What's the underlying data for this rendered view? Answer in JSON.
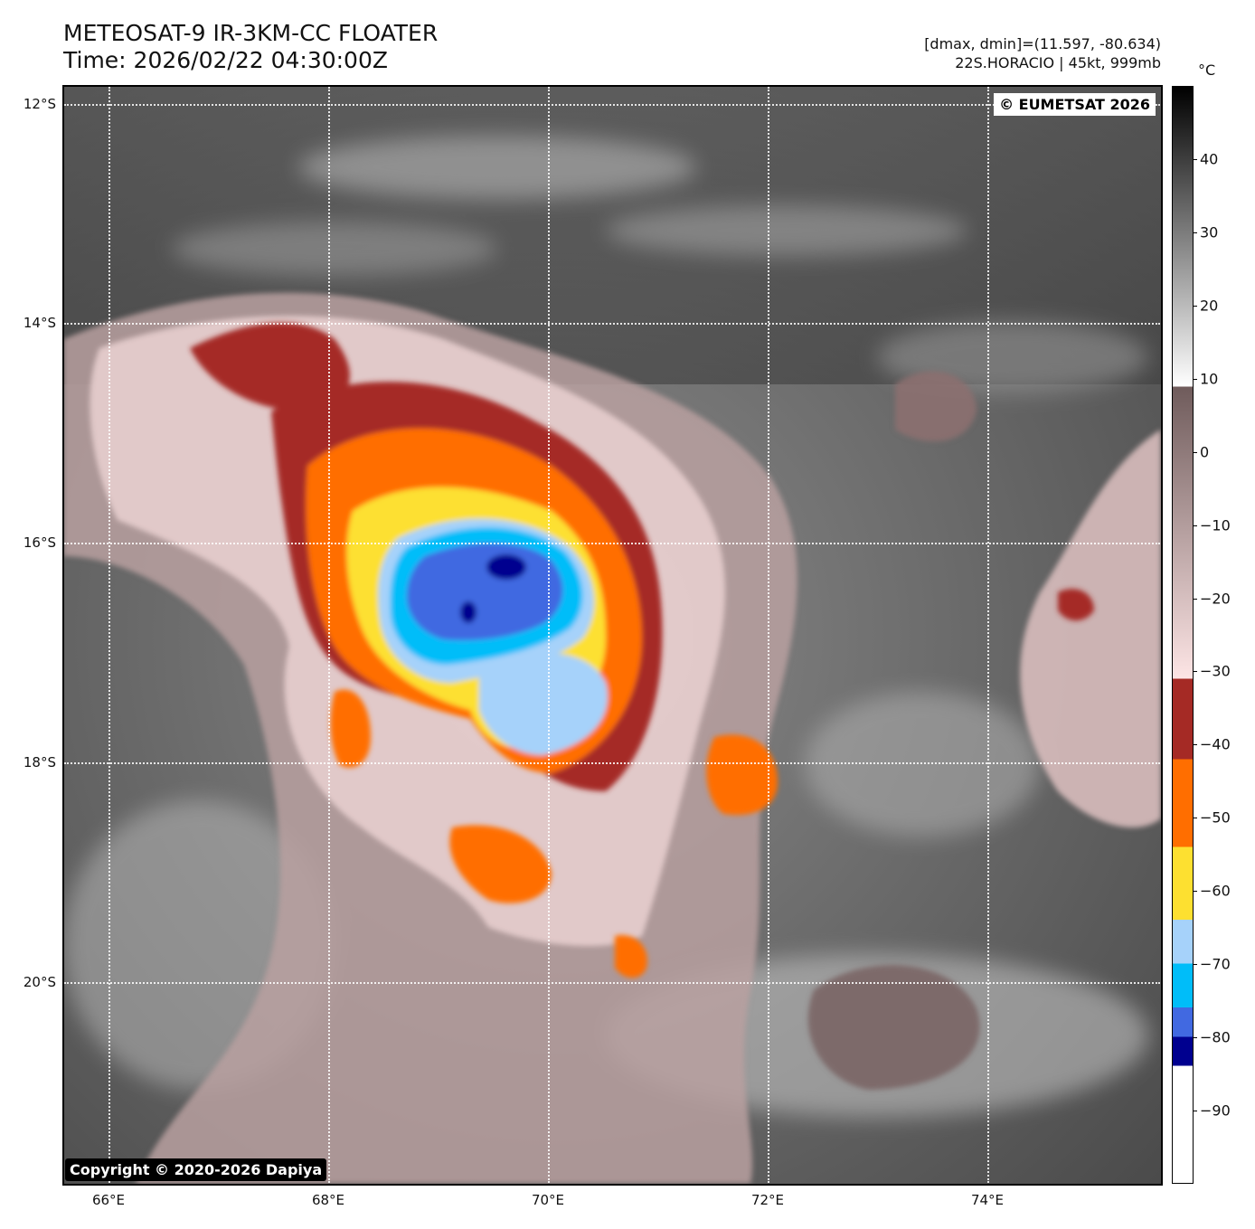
{
  "header": {
    "title_line1": "METEOSAT-9 IR-3KM-CC FLOATER",
    "title_line2": "Time: 2026/02/22 04:30:00Z",
    "info_line1": "[dmax, dmin]=(11.597, -80.634)",
    "info_line2": "22S.HORACIO | 45kt, 999mb"
  },
  "map": {
    "credit_top": "© EUMETSAT 2026",
    "credit_bottom": "Copyright © 2020-2026 Dapiya",
    "lat_labels": [
      "12°S",
      "14°S",
      "16°S",
      "18°S",
      "20°S"
    ],
    "lon_labels": [
      "66°E",
      "68°E",
      "70°E",
      "72°E",
      "74°E"
    ],
    "storm": {
      "name": "22S.HORACIO",
      "intensity_kt": 45,
      "pressure_mb": 999,
      "coldest_top_c": -80.634,
      "warmest_c": 11.597
    }
  },
  "colorbar": {
    "unit": "°C",
    "ticks": [
      "40",
      "30",
      "20",
      "10",
      "0",
      "−10",
      "−20",
      "−30",
      "−40",
      "−50",
      "−60",
      "−70",
      "−80",
      "−90"
    ],
    "tick_values": [
      40,
      30,
      20,
      10,
      0,
      -10,
      -20,
      -30,
      -40,
      -50,
      -60,
      -70,
      -80,
      -90
    ],
    "range": [
      50,
      -100
    ],
    "bands": [
      {
        "from": 50,
        "to": 9,
        "type": "gradient",
        "colors": [
          "#000000",
          "#ffffff"
        ]
      },
      {
        "from": 9,
        "to": -31,
        "type": "gradient",
        "colors": [
          "#6f5b5b",
          "#fde5e5"
        ]
      },
      {
        "from": -31,
        "to": -42,
        "color": "#a52a25"
      },
      {
        "from": -42,
        "to": -54,
        "color": "#ff6e00"
      },
      {
        "from": -54,
        "to": -64,
        "color": "#fde030"
      },
      {
        "from": -64,
        "to": -70,
        "color": "#a6d2fa"
      },
      {
        "from": -70,
        "to": -76,
        "color": "#00bdf9"
      },
      {
        "from": -76,
        "to": -80,
        "color": "#4169e1"
      },
      {
        "from": -80,
        "to": -84,
        "color": "#00008f"
      },
      {
        "from": -84,
        "to": -100,
        "color": "#ffffff"
      }
    ]
  }
}
